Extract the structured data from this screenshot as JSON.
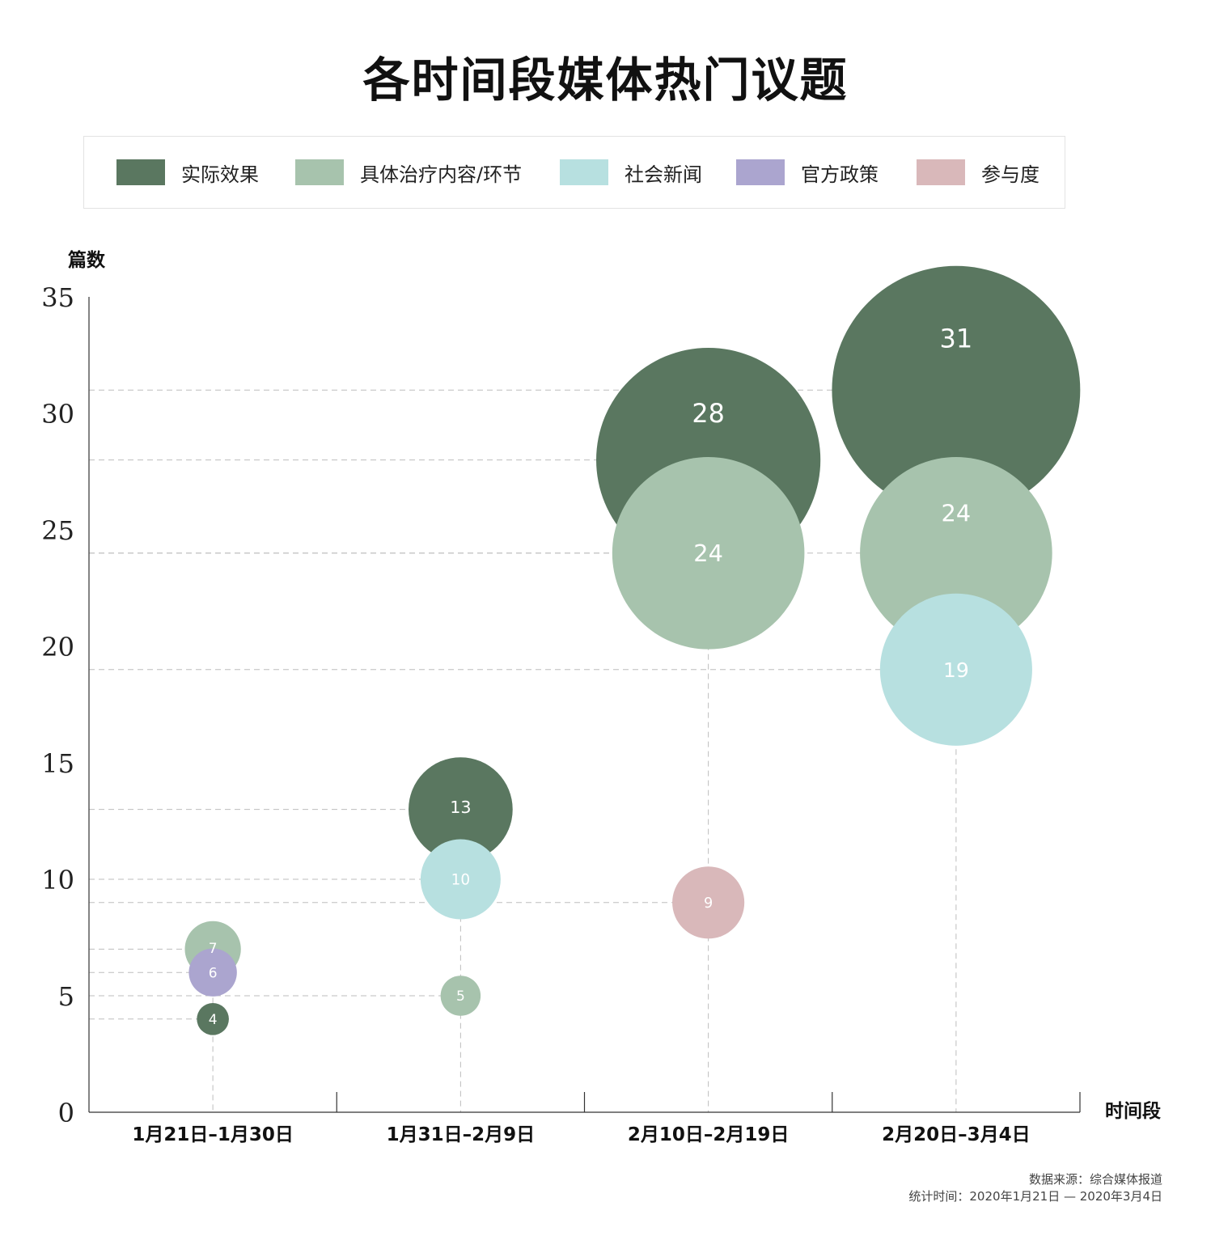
{
  "title": "各时间段媒体热门议题",
  "colors": {
    "实际效果": "#5a7760",
    "具体治疗内容/环节": "#a7c3ad",
    "社会新闻": "#b7e0e0",
    "官方政策": "#aba5cf",
    "参与度": "#d9b8ba"
  },
  "legend": [
    {
      "label": "实际效果"
    },
    {
      "label": "具体治疗内容/环节"
    },
    {
      "label": "社会新闻"
    },
    {
      "label": "官方政策"
    },
    {
      "label": "参与度"
    }
  ],
  "footer": {
    "source": "数据来源：综合媒体报道",
    "period": "统计时间：2020年1月21日 — 2020年3月4日"
  },
  "chart_data": {
    "type": "bubble",
    "title": "各时间段媒体热门议题",
    "xlabel": "时间段",
    "ylabel": "篇数",
    "ylim": [
      0,
      35
    ],
    "yticks": [
      0,
      5,
      10,
      15,
      20,
      25,
      30,
      35
    ],
    "grid": "dashed reference lines at bubble values",
    "legend_position": "top",
    "categories": [
      "1月21日–1月30日",
      "1月31日–2月9日",
      "2月10日–2月19日",
      "2月20日–3月4日"
    ],
    "series": [
      {
        "name": "实际效果",
        "values": [
          4,
          13,
          28,
          31
        ]
      },
      {
        "name": "具体治疗内容/环节",
        "values": [
          7,
          5,
          24,
          24
        ]
      },
      {
        "name": "社会新闻",
        "values": [
          null,
          10,
          null,
          19
        ]
      },
      {
        "name": "官方政策",
        "values": [
          6,
          null,
          null,
          null
        ]
      },
      {
        "name": "参与度",
        "values": [
          null,
          null,
          9,
          null
        ]
      }
    ]
  }
}
